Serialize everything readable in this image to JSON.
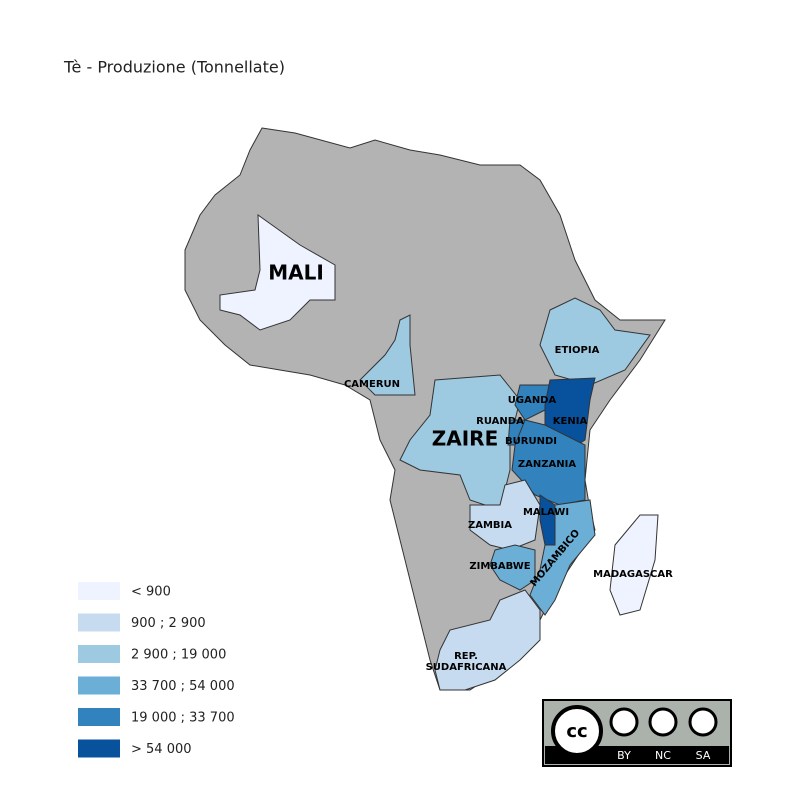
{
  "title": "Tè - Produzione (Tonnellate)",
  "legend": [
    {
      "label": "< 900",
      "color": "#eff3ff"
    },
    {
      "label": "900 ; 2 900",
      "color": "#c6dbef"
    },
    {
      "label": "2 900 ; 19 000",
      "color": "#9ecae1"
    },
    {
      "label": "33 700 ; 54 000",
      "color": "#6baed6"
    },
    {
      "label": "19 000 ; 33 700",
      "color": "#3182bd"
    },
    {
      "label": "> 54 000",
      "color": "#08519c"
    }
  ],
  "labels": [
    "MALI",
    "CAMERUN",
    "ETIOPIA",
    "UGANDA",
    "KENIA",
    "RUANDA",
    "BURUNDI",
    "ZAIRE",
    "ZANZANIA",
    "MALAWI",
    "ZAMBIA",
    "MOZAMBICO",
    "ZIMBABWE",
    "MADAGASCAR",
    "REP.",
    "SUDAFRICANA"
  ],
  "license": [
    "BY",
    "NC",
    "SA"
  ]
}
